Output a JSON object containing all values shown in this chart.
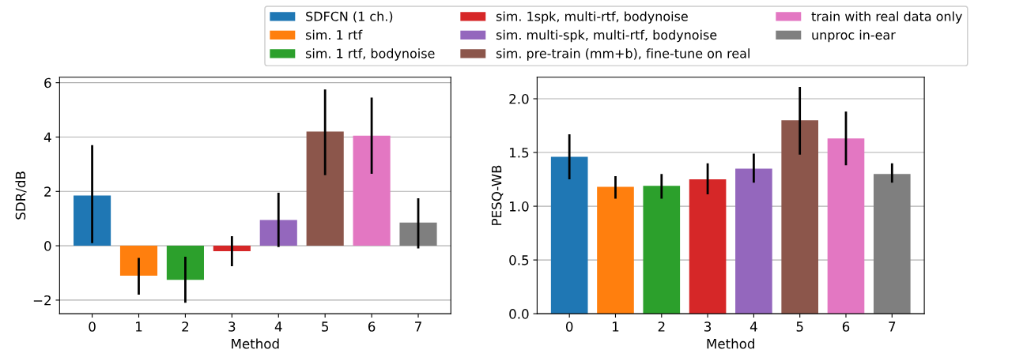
{
  "chart_data": [
    {
      "type": "bar",
      "ylabel": "SDR/dB",
      "xlabel": "Method",
      "categories": [
        "0",
        "1",
        "2",
        "3",
        "4",
        "5",
        "6",
        "7"
      ],
      "ylim": [
        -2.5,
        6.2
      ],
      "yticks": [
        {
          "value": -2,
          "label": "−2"
        },
        0,
        2,
        4,
        6
      ],
      "grid": "y",
      "legend": "top",
      "series": [
        {
          "name": "SDFCN (1 ch.)",
          "color": "#1f77b4",
          "values": [
            1.85,
            null,
            null,
            null,
            null,
            null,
            null,
            null
          ],
          "errors": [
            [
              0.1,
              3.7
            ],
            null,
            null,
            null,
            null,
            null,
            null,
            null
          ]
        },
        {
          "name": "sim. 1 rtf",
          "color": "#ff7f0e",
          "values": [
            null,
            -1.1,
            null,
            null,
            null,
            null,
            null,
            null
          ],
          "errors": [
            null,
            [
              -1.8,
              -0.45
            ],
            null,
            null,
            null,
            null,
            null,
            null
          ]
        },
        {
          "name": "sim. 1 rtf, bodynoise",
          "color": "#2ca02c",
          "values": [
            null,
            null,
            -1.25,
            null,
            null,
            null,
            null,
            null
          ],
          "errors": [
            null,
            null,
            [
              -2.1,
              -0.4
            ],
            null,
            null,
            null,
            null,
            null
          ]
        },
        {
          "name": "sim. 1spk, multi-rtf, bodynoise",
          "color": "#d62728",
          "values": [
            null,
            null,
            null,
            -0.2,
            null,
            null,
            null,
            null
          ],
          "errors": [
            null,
            null,
            null,
            [
              -0.75,
              0.35
            ],
            null,
            null,
            null,
            null
          ]
        },
        {
          "name": "sim. multi-spk, multi-rtf, bodynoise",
          "color": "#9467bd",
          "values": [
            null,
            null,
            null,
            null,
            0.95,
            null,
            null,
            null
          ],
          "errors": [
            null,
            null,
            null,
            null,
            [
              -0.05,
              1.95
            ],
            null,
            null,
            null
          ]
        },
        {
          "name": "sim. pre-train (mm+b), fine-tune on real",
          "color": "#8c564b",
          "values": [
            null,
            null,
            null,
            null,
            null,
            4.2,
            null,
            null
          ],
          "errors": [
            null,
            null,
            null,
            null,
            null,
            [
              2.6,
              5.75
            ],
            null,
            null
          ]
        },
        {
          "name": "train with real data only",
          "color": "#e377c2",
          "values": [
            null,
            null,
            null,
            null,
            null,
            null,
            4.05,
            null
          ],
          "errors": [
            null,
            null,
            null,
            null,
            null,
            null,
            [
              2.65,
              5.45
            ],
            null
          ]
        },
        {
          "name": "unproc in-ear",
          "color": "#7f7f7f",
          "values": [
            null,
            null,
            null,
            null,
            null,
            null,
            null,
            0.85
          ],
          "errors": [
            null,
            null,
            null,
            null,
            null,
            null,
            null,
            [
              -0.1,
              1.75
            ]
          ]
        }
      ]
    },
    {
      "type": "bar",
      "ylabel": "PESQ-WB",
      "xlabel": "Method",
      "categories": [
        "0",
        "1",
        "2",
        "3",
        "4",
        "5",
        "6",
        "7"
      ],
      "ylim": [
        0,
        2.2
      ],
      "yticks": [
        {
          "value": 0,
          "label": "0.0"
        },
        0.5,
        {
          "value": 1,
          "label": "1.0"
        },
        1.5,
        {
          "value": 2,
          "label": "2.0"
        }
      ],
      "grid": "y",
      "series": [
        {
          "color": "#1f77b4",
          "values": [
            1.46,
            null,
            null,
            null,
            null,
            null,
            null,
            null
          ],
          "errors": [
            [
              1.25,
              1.67
            ],
            null,
            null,
            null,
            null,
            null,
            null,
            null
          ]
        },
        {
          "color": "#ff7f0e",
          "values": [
            null,
            1.18,
            null,
            null,
            null,
            null,
            null,
            null
          ],
          "errors": [
            null,
            [
              1.07,
              1.28
            ],
            null,
            null,
            null,
            null,
            null,
            null
          ]
        },
        {
          "color": "#2ca02c",
          "values": [
            null,
            null,
            1.19,
            null,
            null,
            null,
            null,
            null
          ],
          "errors": [
            null,
            null,
            [
              1.07,
              1.3
            ],
            null,
            null,
            null,
            null,
            null
          ]
        },
        {
          "color": "#d62728",
          "values": [
            null,
            null,
            null,
            1.25,
            null,
            null,
            null,
            null
          ],
          "errors": [
            null,
            null,
            null,
            [
              1.11,
              1.4
            ],
            null,
            null,
            null,
            null
          ]
        },
        {
          "color": "#9467bd",
          "values": [
            null,
            null,
            null,
            null,
            1.35,
            null,
            null,
            null
          ],
          "errors": [
            null,
            null,
            null,
            null,
            [
              1.22,
              1.49
            ],
            null,
            null,
            null
          ]
        },
        {
          "color": "#8c564b",
          "values": [
            null,
            null,
            null,
            null,
            null,
            1.8,
            null,
            null
          ],
          "errors": [
            null,
            null,
            null,
            null,
            null,
            [
              1.48,
              2.11
            ],
            null,
            null
          ]
        },
        {
          "color": "#e377c2",
          "values": [
            null,
            null,
            null,
            null,
            null,
            null,
            1.63,
            null
          ],
          "errors": [
            null,
            null,
            null,
            null,
            null,
            null,
            [
              1.38,
              1.88
            ],
            null
          ]
        },
        {
          "color": "#7f7f7f",
          "values": [
            null,
            null,
            null,
            null,
            null,
            null,
            null,
            1.3
          ],
          "errors": [
            null,
            null,
            null,
            null,
            null,
            null,
            null,
            [
              1.22,
              1.4
            ]
          ]
        }
      ]
    }
  ]
}
